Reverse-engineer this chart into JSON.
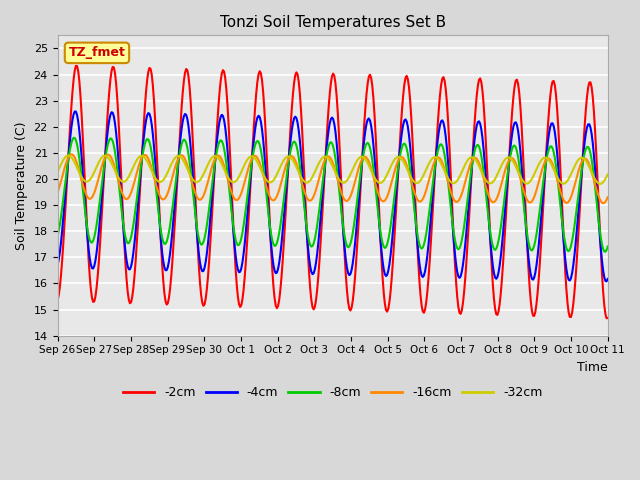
{
  "title": "Tonzi Soil Temperatures Set B",
  "xlabel": "Time",
  "ylabel": "Soil Temperature (C)",
  "ylim": [
    14.0,
    25.5
  ],
  "yticks": [
    14.0,
    15.0,
    16.0,
    17.0,
    18.0,
    19.0,
    20.0,
    21.0,
    22.0,
    23.0,
    24.0,
    25.0
  ],
  "x_labels": [
    "Sep 26",
    "Sep 27",
    "Sep 28",
    "Sep 29",
    "Sep 30",
    "Oct 1",
    "Oct 2",
    "Oct 3",
    "Oct 4",
    "Oct 5",
    "Oct 6",
    "Oct 7",
    "Oct 8",
    "Oct 9",
    "Oct 10",
    "Oct 11"
  ],
  "legend_labels": [
    "-2cm",
    "-4cm",
    "-8cm",
    "-16cm",
    "-32cm"
  ],
  "legend_colors": [
    "#ff0000",
    "#0000ff",
    "#00cc00",
    "#ff8800",
    "#cccc00"
  ],
  "annotation_text": "TZ_fmet",
  "annotation_color": "#cc0000",
  "annotation_bg": "#ffff99",
  "plot_bg": "#e8e8e8",
  "n_points": 480,
  "days": 15
}
